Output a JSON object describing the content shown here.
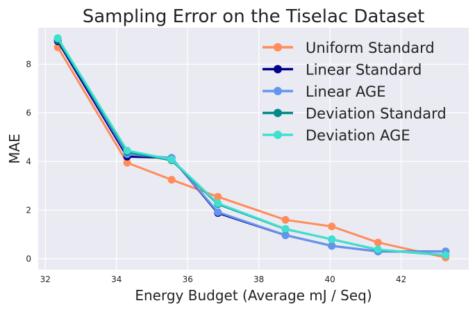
{
  "chart_data": {
    "type": "line",
    "title": "Sampling Error on the Tiselac Dataset",
    "xlabel": "Energy Budget (Average mJ / Seq)",
    "ylabel": "MAE",
    "xlim": [
      31.8,
      43.9
    ],
    "ylim": [
      -0.45,
      9.5
    ],
    "xticks": [
      "32",
      "34",
      "36",
      "38",
      "40",
      "42"
    ],
    "yticks": [
      "0",
      "2",
      "4",
      "6",
      "8"
    ],
    "grid": true,
    "legend_position": "top-right",
    "background": "#eaeaf2",
    "series": [
      {
        "name": "Uniform Standard",
        "color": "#ff8c5a",
        "x": [
          32.35,
          34.3,
          35.55,
          36.85,
          38.75,
          40.05,
          41.35,
          43.25
        ],
        "y": [
          8.7,
          3.95,
          3.25,
          2.55,
          1.6,
          1.33,
          0.67,
          0.05
        ]
      },
      {
        "name": "Linear Standard",
        "color": "#00008b",
        "x": [
          32.35,
          34.3,
          35.55,
          36.85,
          38.75,
          40.05,
          41.35,
          43.25
        ],
        "y": [
          8.95,
          4.2,
          4.15,
          1.88,
          0.97,
          0.53,
          0.3,
          0.3
        ]
      },
      {
        "name": "Linear AGE",
        "color": "#6495ed",
        "x": [
          32.35,
          34.3,
          35.55,
          36.85,
          38.75,
          40.05,
          41.35,
          43.25
        ],
        "y": [
          9.05,
          4.3,
          4.15,
          1.92,
          0.97,
          0.53,
          0.3,
          0.3
        ]
      },
      {
        "name": "Deviation Standard",
        "color": "#008b8b",
        "x": [
          32.35,
          34.3,
          35.55,
          36.85,
          38.75,
          40.05,
          41.35,
          43.25
        ],
        "y": [
          9.0,
          4.4,
          4.05,
          2.25,
          1.22,
          0.8,
          0.37,
          0.15
        ]
      },
      {
        "name": "Deviation AGE",
        "color": "#40e0d0",
        "x": [
          32.35,
          34.3,
          35.55,
          36.85,
          38.75,
          40.05,
          41.35,
          43.25
        ],
        "y": [
          9.08,
          4.45,
          4.08,
          2.28,
          1.23,
          0.8,
          0.38,
          0.15
        ]
      }
    ]
  }
}
